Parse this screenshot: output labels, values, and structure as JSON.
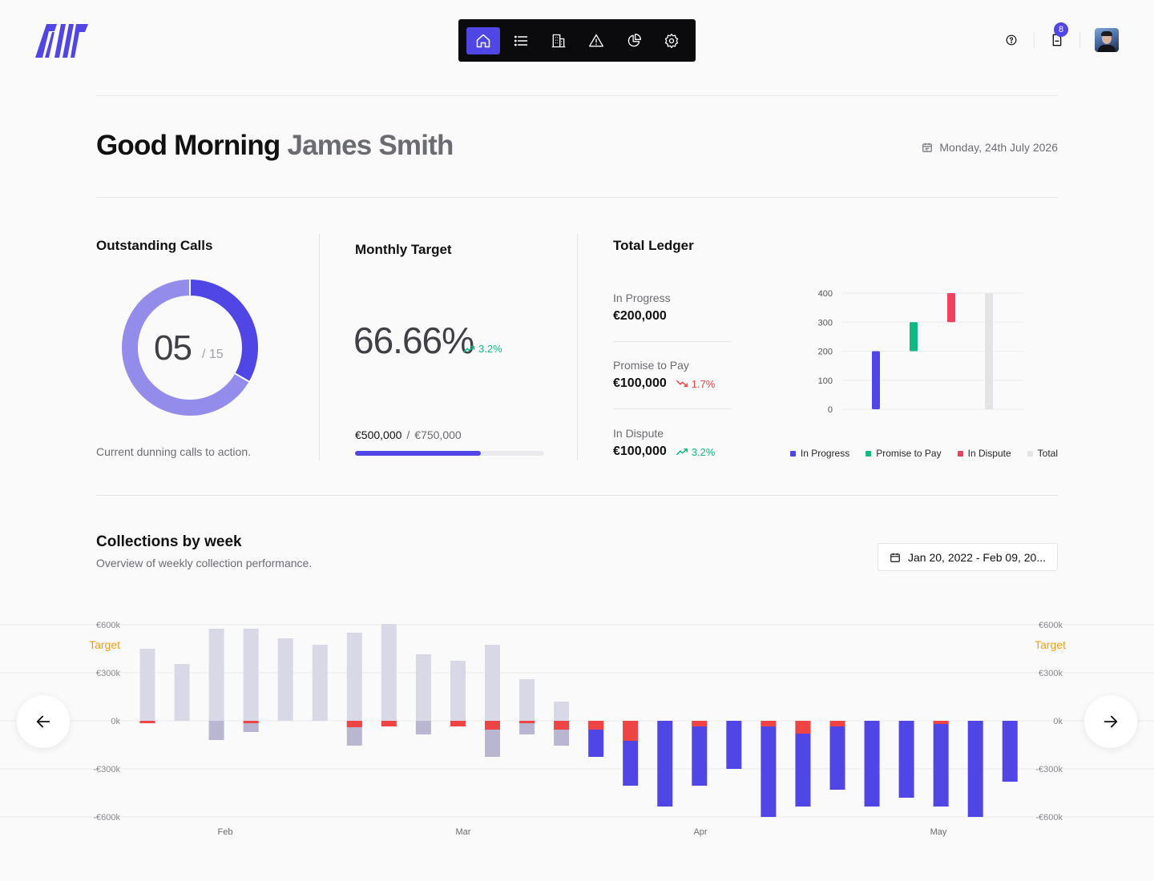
{
  "brand": {
    "accent": "#4f46e5",
    "logo_alt": "company-logo"
  },
  "nav": {
    "items": [
      "home-icon",
      "list-icon",
      "building-icon",
      "alert-icon",
      "pie-chart-icon",
      "settings-icon"
    ],
    "active": "home-icon"
  },
  "topbar": {
    "notifications_count": "8"
  },
  "greeting": {
    "prefix": "Good Morning",
    "name": "James Smith",
    "date": "Monday, 24th July 2026"
  },
  "outstanding_calls": {
    "title": "Outstanding Calls",
    "count": "05",
    "total": "/ 15",
    "caption": "Current dunning calls to action.",
    "completed_fraction": 0.333
  },
  "monthly_target": {
    "title": "Monthly Target",
    "percent": "66.66%",
    "trend": "3.2%",
    "current": "€500,000",
    "separator": "/",
    "target": "€750,000",
    "progress": 0.6666
  },
  "total_ledger": {
    "title": "Total Ledger",
    "items": [
      {
        "label": "In Progress",
        "value": "€200,000",
        "trend": ""
      },
      {
        "label": "Promise to Pay",
        "value": "€100,000",
        "trend": "1.7%"
      },
      {
        "label": "In Dispute",
        "value": "€100,000",
        "trend": "3.2%"
      }
    ]
  },
  "collections": {
    "title": "Collections by week",
    "subtitle": "Overview of weekly collection performance.",
    "date_range": "Jan 20, 2022 - Feb 09, 20..."
  },
  "chart_data": [
    {
      "type": "bar",
      "title": "",
      "categories": [
        "In Progress",
        "Promise to Pay",
        "In Dispute",
        "Total"
      ],
      "series": [
        {
          "name": "In Progress",
          "color": "#4f46e5",
          "range": [
            0,
            200
          ]
        },
        {
          "name": "Promise to Pay",
          "color": "#10b981",
          "range": [
            200,
            300
          ]
        },
        {
          "name": "In Dispute",
          "color": "#f43f5e",
          "range": [
            300,
            400
          ]
        },
        {
          "name": "Total",
          "color": "#e4e4e7",
          "range": [
            0,
            400
          ]
        }
      ],
      "y_ticks": [
        "0",
        "100",
        "200",
        "300",
        "400"
      ],
      "ylim": [
        0,
        400
      ],
      "grid": true,
      "legend": "bottom-right"
    },
    {
      "type": "bar",
      "title": "",
      "ylim": [
        -600,
        600
      ],
      "y_ticks": [
        "€600k",
        "€300k",
        "0k",
        "-€300k",
        "-€600k"
      ],
      "target_label": "Target",
      "x_ticks": [
        "Feb",
        "Mar",
        "Apr",
        "May"
      ],
      "grid": true,
      "weeks": [
        {
          "pos": 450,
          "neg": 0,
          "red": 15,
          "neg_color": "gray"
        },
        {
          "pos": 355,
          "neg": 0,
          "red": 0,
          "neg_color": "gray"
        },
        {
          "pos": 575,
          "neg": 120,
          "red": 0,
          "neg_color": "gray"
        },
        {
          "pos": 575,
          "neg": 70,
          "red": 15,
          "neg_color": "gray"
        },
        {
          "pos": 515,
          "neg": 0,
          "red": 0,
          "neg_color": "gray"
        },
        {
          "pos": 475,
          "neg": 0,
          "red": 0,
          "neg_color": "gray"
        },
        {
          "pos": 550,
          "neg": 155,
          "red": 40,
          "neg_color": "gray"
        },
        {
          "pos": 605,
          "neg": 0,
          "red": 35,
          "neg_color": "gray"
        },
        {
          "pos": 415,
          "neg": 85,
          "red": 0,
          "neg_color": "gray"
        },
        {
          "pos": 375,
          "neg": 0,
          "red": 35,
          "neg_color": "gray"
        },
        {
          "pos": 475,
          "neg": 225,
          "red": 55,
          "neg_color": "gray"
        },
        {
          "pos": 260,
          "neg": 85,
          "red": 15,
          "neg_color": "gray"
        },
        {
          "pos": 120,
          "neg": 155,
          "red": 55,
          "neg_color": "gray"
        },
        {
          "pos": 0,
          "neg": 225,
          "red": 55,
          "neg_color": "blue"
        },
        {
          "pos": 0,
          "neg": 405,
          "red": 125,
          "neg_color": "blue"
        },
        {
          "pos": 0,
          "neg": 535,
          "red": 0,
          "neg_color": "blue"
        },
        {
          "pos": 0,
          "neg": 405,
          "red": 35,
          "neg_color": "blue"
        },
        {
          "pos": 0,
          "neg": 300,
          "red": 0,
          "neg_color": "blue"
        },
        {
          "pos": 0,
          "neg": 600,
          "red": 35,
          "neg_color": "blue"
        },
        {
          "pos": 0,
          "neg": 535,
          "red": 80,
          "neg_color": "blue"
        },
        {
          "pos": 0,
          "neg": 430,
          "red": 35,
          "neg_color": "blue"
        },
        {
          "pos": 0,
          "neg": 535,
          "red": 0,
          "neg_color": "blue"
        },
        {
          "pos": 0,
          "neg": 480,
          "red": 0,
          "neg_color": "blue"
        },
        {
          "pos": 0,
          "neg": 535,
          "red": 20,
          "neg_color": "blue"
        },
        {
          "pos": 0,
          "neg": 600,
          "red": 0,
          "neg_color": "blue"
        },
        {
          "pos": 0,
          "neg": 380,
          "red": 0,
          "neg_color": "blue"
        }
      ]
    }
  ]
}
